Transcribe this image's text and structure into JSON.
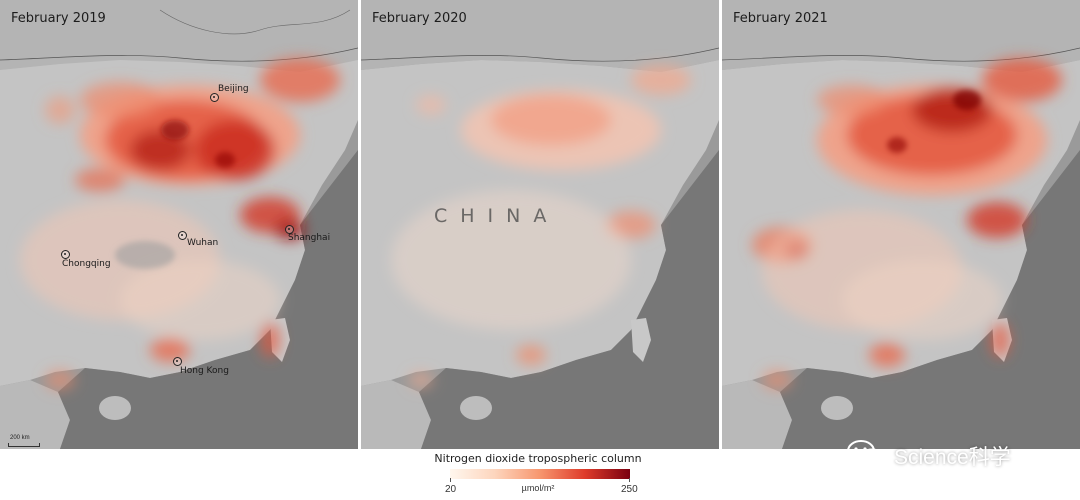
{
  "panels": [
    {
      "title": "February 2019",
      "intensity": "high"
    },
    {
      "title": "February 2020",
      "intensity": "low"
    },
    {
      "title": "February 2021",
      "intensity": "high"
    }
  ],
  "cities": {
    "beijing": "Beijing",
    "wuhan": "Wuhan",
    "shanghai": "Shanghai",
    "chongqing": "Chongqing",
    "hong_kong": "Hong Kong"
  },
  "country_label": "CHINA",
  "scale_label": "200 km",
  "legend": {
    "title": "Nitrogen dioxide tropospheric column",
    "min": "20",
    "unit": "µmol/m²",
    "max": "250",
    "colors": [
      "#fff7ee",
      "#fdd5bd",
      "#f7966e",
      "#de3b2a",
      "#7a0010"
    ]
  },
  "watermark": "Science科学"
}
